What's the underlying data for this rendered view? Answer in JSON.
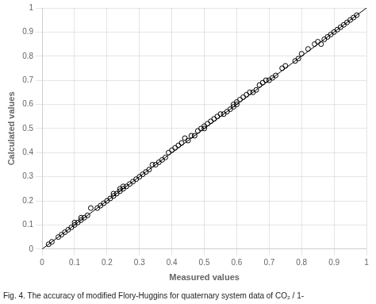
{
  "chart_data": {
    "type": "scatter",
    "xlabel": "Measured values",
    "ylabel": "Calculated values",
    "caption": "Fig. 4. The accuracy of modified Flory-Huggins for quaternary system data of CO₂ / 1-",
    "xlim": [
      0,
      1
    ],
    "ylim": [
      0,
      1
    ],
    "xticks": [
      0,
      0.1,
      0.2,
      0.3,
      0.4,
      0.5,
      0.6,
      0.7,
      0.8,
      0.9,
      1
    ],
    "yticks": [
      0,
      0.1,
      0.2,
      0.3,
      0.4,
      0.5,
      0.6,
      0.7,
      0.8,
      0.9,
      1
    ],
    "grid": true,
    "series": [
      {
        "type": "line",
        "color": "#000000",
        "line_style": "solid",
        "x": [
          0,
          1
        ],
        "values": [
          0,
          1
        ]
      },
      {
        "type": "scatter",
        "color": "#000000",
        "marker": "open_circle",
        "x": [
          0.02,
          0.03,
          0.05,
          0.06,
          0.07,
          0.08,
          0.09,
          0.1,
          0.1,
          0.11,
          0.12,
          0.12,
          0.13,
          0.14,
          0.15,
          0.17,
          0.18,
          0.19,
          0.2,
          0.21,
          0.22,
          0.22,
          0.23,
          0.24,
          0.24,
          0.25,
          0.25,
          0.26,
          0.27,
          0.28,
          0.29,
          0.3,
          0.31,
          0.32,
          0.33,
          0.34,
          0.35,
          0.36,
          0.37,
          0.38,
          0.39,
          0.4,
          0.41,
          0.42,
          0.43,
          0.44,
          0.45,
          0.46,
          0.47,
          0.48,
          0.49,
          0.5,
          0.5,
          0.51,
          0.52,
          0.53,
          0.54,
          0.55,
          0.56,
          0.57,
          0.58,
          0.59,
          0.59,
          0.6,
          0.6,
          0.61,
          0.62,
          0.63,
          0.64,
          0.65,
          0.66,
          0.67,
          0.68,
          0.69,
          0.7,
          0.71,
          0.72,
          0.74,
          0.75,
          0.78,
          0.79,
          0.8,
          0.82,
          0.84,
          0.85,
          0.86,
          0.87,
          0.88,
          0.89,
          0.9,
          0.91,
          0.92,
          0.93,
          0.94,
          0.95,
          0.96,
          0.97
        ],
        "values": [
          0.02,
          0.03,
          0.05,
          0.06,
          0.07,
          0.08,
          0.09,
          0.1,
          0.11,
          0.11,
          0.12,
          0.13,
          0.13,
          0.14,
          0.17,
          0.17,
          0.18,
          0.19,
          0.2,
          0.21,
          0.22,
          0.23,
          0.23,
          0.24,
          0.25,
          0.25,
          0.26,
          0.26,
          0.27,
          0.28,
          0.29,
          0.3,
          0.31,
          0.32,
          0.33,
          0.35,
          0.35,
          0.36,
          0.37,
          0.38,
          0.4,
          0.41,
          0.42,
          0.43,
          0.44,
          0.46,
          0.45,
          0.47,
          0.47,
          0.49,
          0.5,
          0.5,
          0.51,
          0.52,
          0.53,
          0.54,
          0.55,
          0.56,
          0.56,
          0.57,
          0.58,
          0.59,
          0.6,
          0.6,
          0.61,
          0.62,
          0.63,
          0.64,
          0.65,
          0.65,
          0.66,
          0.68,
          0.69,
          0.7,
          0.7,
          0.71,
          0.72,
          0.75,
          0.76,
          0.78,
          0.79,
          0.81,
          0.83,
          0.85,
          0.86,
          0.85,
          0.87,
          0.88,
          0.89,
          0.9,
          0.91,
          0.92,
          0.93,
          0.94,
          0.95,
          0.96,
          0.97
        ]
      }
    ]
  }
}
